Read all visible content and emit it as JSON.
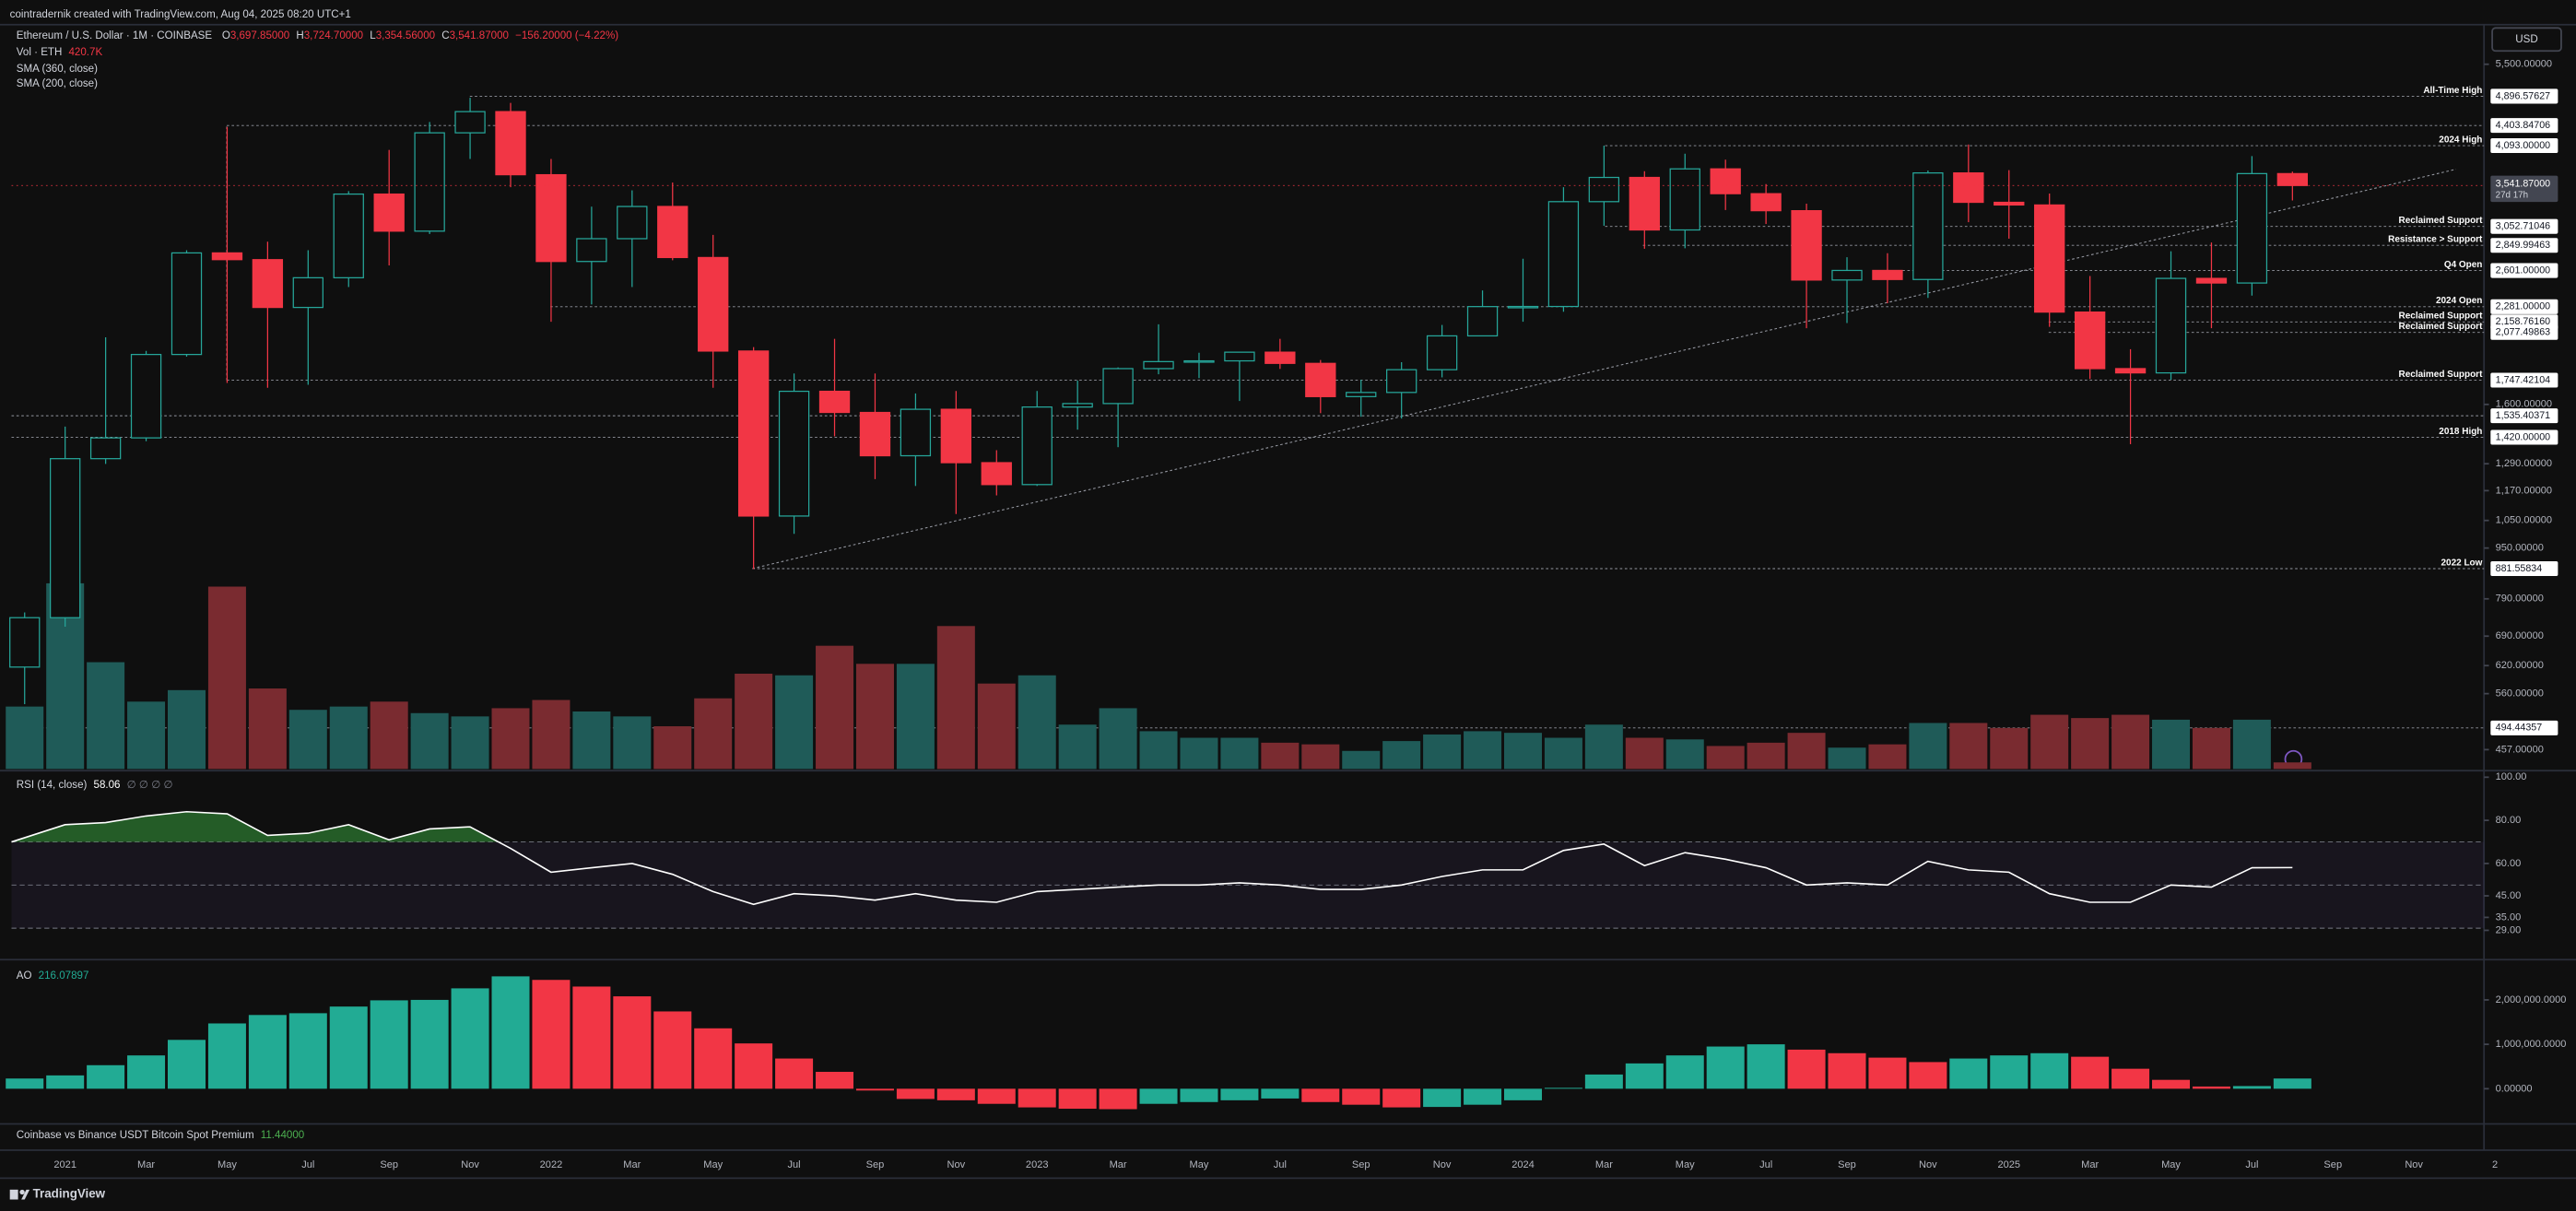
{
  "header": {
    "credit": "cointradernik created with TradingView.com, Aug 04, 2025 08:20 UTC+1"
  },
  "chart_data": [
    {
      "type": "candlestick",
      "title": "Ethereum / U.S. Dollar · 1M · COINBASE",
      "ohlc_legend": [
        {
          "key": "O",
          "text": "3,697.85000"
        },
        {
          "key": "H",
          "text": "3,724.70000"
        },
        {
          "key": "L",
          "text": "3,354.56000"
        },
        {
          "key": "C",
          "text": "3,541.87000"
        }
      ],
      "change_label": "−156.20000 (−4.22%)",
      "indicators": [
        "SMA (360, close)",
        "SMA (200, close)"
      ],
      "currency": "USD",
      "categories": [
        null,
        "2021",
        null,
        "Mar",
        null,
        "May",
        null,
        "Jul",
        null,
        "Sep",
        null,
        "Nov",
        null,
        "2022",
        null,
        "Mar",
        null,
        "May",
        null,
        "Jul",
        null,
        "Sep",
        null,
        "Nov",
        null,
        "2023",
        null,
        "Mar",
        null,
        "May",
        null,
        "Jul",
        null,
        "Sep",
        null,
        "Nov",
        null,
        "2024",
        null,
        "Mar",
        null,
        "May",
        null,
        "Jul",
        null,
        "Sep",
        null,
        "Nov",
        null,
        "2025",
        null,
        "Mar",
        null,
        "May",
        null,
        "Jul",
        null,
        "Sep",
        null,
        "Nov",
        null,
        "2"
      ],
      "open": [
        616.7,
        737.8,
        1314,
        1417,
        1918,
        2773,
        2706,
        2275,
        2534,
        3433,
        3001,
        4288,
        4631,
        3683,
        2688,
        2920,
        3282,
        2727,
        1942,
        1067,
        1678,
        1554,
        1328,
        1572,
        1295,
        1196,
        1585,
        1605,
        1822,
        1869,
        1874,
        1934,
        1857,
        1646,
        1671,
        1815,
        2052,
        2282,
        2283,
        3340,
        3647,
        3014,
        3762,
        3438,
        3232,
        2513,
        2602,
        2518,
        3707,
        3332,
        3300,
        2237,
        1822,
        1794,
        2528,
        2486,
        3697.85,
        null,
        null,
        null,
        null,
        null
      ],
      "high": [
        752,
        1476,
        2041,
        1943,
        2800,
        4380,
        2888,
        2800,
        3470,
        4030,
        4460,
        4870,
        4780,
        3900,
        3280,
        3480,
        3580,
        2960,
        1970,
        1790,
        2030,
        1790,
        1665,
        1680,
        1355,
        1680,
        1745,
        1830,
        2140,
        1930,
        1930,
        2030,
        1880,
        1750,
        1865,
        2135,
        2420,
        2715,
        3520,
        4093,
        3730,
        3975,
        3890,
        3560,
        3315,
        2730,
        2770,
        3740,
        4110,
        3745,
        3440,
        2550,
        1955,
        2790,
        2880,
        3940,
        3724.7,
        null,
        null,
        null,
        null,
        null
      ],
      "low": [
        539,
        714,
        1289,
        1400,
        1903,
        1730,
        1700,
        1718,
        2450,
        2650,
        2970,
        3900,
        3520,
        2160,
        2300,
        2450,
        2700,
        1700,
        880,
        1000,
        1425,
        1220,
        1190,
        1075,
        1150,
        1190,
        1460,
        1370,
        1785,
        1760,
        1620,
        1820,
        1550,
        1530,
        1520,
        1765,
        2050,
        2160,
        2240,
        3060,
        2815,
        2820,
        3240,
        3080,
        2110,
        2150,
        2310,
        2355,
        3100,
        2920,
        2120,
        1755,
        1385,
        1750,
        2110,
        2375,
        3354.56,
        null,
        null,
        null,
        null,
        null
      ],
      "close": [
        737.8,
        1314,
        1417,
        1918,
        2773,
        2706,
        2275,
        2534,
        3433,
        3001,
        4288,
        4631,
        3683,
        2688,
        2920,
        3282,
        2727,
        1942,
        1067,
        1678,
        1554,
        1328,
        1572,
        1295,
        1196,
        1585,
        1605,
        1822,
        1869,
        1874,
        1934,
        1857,
        1646,
        1671,
        1815,
        2052,
        2282,
        2283,
        3340,
        3647,
        3014,
        3762,
        3438,
        3232,
        2513,
        2602,
        2518,
        3707,
        3332,
        3300,
        2237,
        1822,
        1794,
        2528,
        2486,
        3698,
        3541.87,
        null,
        null,
        null,
        null,
        null
      ],
      "up_color": "#26a69a",
      "down_color": "#f23645",
      "log_scale": true,
      "ylim": [
        426,
        6350
      ],
      "yticks": [
        {
          "value": 5500,
          "label": "5,500.00000"
        },
        {
          "value": 1600,
          "label": "1,600.00000"
        },
        {
          "value": 1290,
          "label": "1,290.00000"
        },
        {
          "value": 1170,
          "label": "1,170.00000"
        },
        {
          "value": 1050,
          "label": "1,050.00000"
        },
        {
          "value": 950,
          "label": "950.00000"
        },
        {
          "value": 790,
          "label": "790.00000"
        },
        {
          "value": 690,
          "label": "690.00000"
        },
        {
          "value": 620,
          "label": "620.00000"
        },
        {
          "value": 560,
          "label": "560.00000"
        },
        {
          "value": 457,
          "label": "457.00000"
        }
      ],
      "levels": [
        {
          "name": "All-Time High",
          "value": 4896.57627,
          "label": "4,896.57627"
        },
        {
          "value": 4403.84706,
          "label": "4,403.84706"
        },
        {
          "name": "2024 High",
          "value": 4093,
          "label": "4,093.00000"
        },
        {
          "name": "Reclaimed Support",
          "value": 3052.71046,
          "label": "3,052.71046"
        },
        {
          "name": "Resistance > Support",
          "value": 2849.99463,
          "label": "2,849.99463"
        },
        {
          "name": "Q4 Open",
          "value": 2601,
          "label": "2,601.00000"
        },
        {
          "name": "2024 Open",
          "value": 2281,
          "label": "2,281.00000"
        },
        {
          "name": "Reclaimed Support",
          "value": 2158.7616,
          "label": "2,158.76160"
        },
        {
          "name": "Reclaimed Support",
          "value": 2077.49863,
          "label": "2,077.49863"
        },
        {
          "name": "Reclaimed Support",
          "value": 1747.42104,
          "label": "1,747.42104"
        },
        {
          "value": 1535.40371,
          "label": "1,535.40371"
        },
        {
          "name": "2018 High",
          "value": 1420,
          "label": "1,420.00000"
        },
        {
          "name": "2022 Low",
          "value": 881.55834,
          "label": "881.55834"
        },
        {
          "value": 494.44357,
          "label": "494.44357"
        }
      ],
      "last_price": {
        "value": 3541.87,
        "label": "3,541.87000",
        "countdown": "27d 17h"
      }
    },
    {
      "type": "volume",
      "title": "Vol · ETH",
      "last_label": "420.7K",
      "values": [
        3990000,
        11865000,
        6825000,
        4305000,
        5040000,
        11655000,
        5145000,
        3780000,
        3990000,
        4305000,
        3570000,
        3360000,
        3885000,
        4410000,
        3675000,
        3360000,
        2730000,
        4515000,
        6090000,
        5985000,
        7875000,
        6720000,
        6720000,
        9135000,
        5460000,
        5985000,
        2835000,
        3885000,
        2415000,
        1995000,
        1995000,
        1680000,
        1575000,
        1155000,
        1785000,
        2205000,
        2415000,
        2310000,
        1995000,
        2835000,
        1995000,
        1890000,
        1470000,
        1680000,
        2310000,
        1365000,
        1575000,
        2940000,
        2940000,
        2625000,
        3465000,
        3255000,
        3465000,
        3150000,
        2625000,
        3150000,
        420700,
        null,
        null,
        null,
        null,
        null
      ],
      "up_color": "#1f5b58",
      "down_color": "#7a2b30"
    },
    {
      "type": "line",
      "title": "RSI (14, close)",
      "extra_label": "∅ ∅ ∅ ∅",
      "values": [
        70,
        78,
        79,
        82,
        84,
        83,
        73,
        74,
        78,
        71,
        76,
        77,
        67,
        56,
        58,
        60,
        55,
        47,
        41,
        46,
        45,
        43,
        46,
        43,
        42,
        47,
        48,
        49,
        50,
        50,
        51,
        50,
        48,
        48,
        50,
        54,
        57,
        57,
        66,
        69,
        59,
        65,
        62,
        58,
        50,
        51,
        50,
        61,
        57,
        56,
        46,
        42,
        42,
        50,
        49,
        58,
        58.06,
        null,
        null,
        null,
        null,
        null
      ],
      "color": "#ffffff",
      "band_color": "#7e57c2",
      "overbought_fill": "#2e7d32",
      "bands": [
        70,
        50,
        30
      ],
      "ylim": [
        20,
        100
      ],
      "yticks": [
        {
          "value": 100,
          "label": "100.00"
        },
        {
          "value": 80,
          "label": "80.00"
        },
        {
          "value": 60,
          "label": "60.00"
        },
        {
          "value": 45,
          "label": "45.00"
        },
        {
          "value": 35,
          "label": "35.00"
        },
        {
          "value": 29,
          "label": "29.00"
        }
      ]
    },
    {
      "type": "histogram",
      "title": "AO",
      "legend_value": 216.07897,
      "values": [
        230000,
        300000,
        530000,
        750000,
        1100000,
        1470000,
        1660000,
        1700000,
        1850000,
        1990000,
        2000000,
        2260000,
        2530000,
        2450000,
        2300000,
        2080000,
        1740000,
        1360000,
        1020000,
        680000,
        380000,
        -40000,
        -230000,
        -260000,
        -340000,
        -420000,
        -450000,
        -460000,
        -340000,
        -300000,
        -260000,
        -220000,
        -300000,
        -360000,
        -420000,
        -410000,
        -360000,
        -260000,
        20000,
        320000,
        570000,
        750000,
        950000,
        1000000,
        880000,
        800000,
        700000,
        600000,
        680000,
        750000,
        800000,
        720000,
        450000,
        200000,
        50000,
        60000,
        230000,
        null,
        null,
        null,
        null,
        null
      ],
      "up_color": "#22ab94",
      "down_color": "#f23645",
      "ylim": [
        -755000,
        2870000
      ],
      "yticks": [
        {
          "value": 2000000,
          "label": "2,000,000.0000"
        },
        {
          "value": 1000000,
          "label": "1,000,000.0000"
        },
        {
          "value": 0,
          "label": "0.00000"
        }
      ]
    }
  ],
  "footer_indicator": {
    "title": "Coinbase vs Binance USDT Bitcoin Spot Premium",
    "value": "11.44000"
  },
  "branding": "TradingView"
}
